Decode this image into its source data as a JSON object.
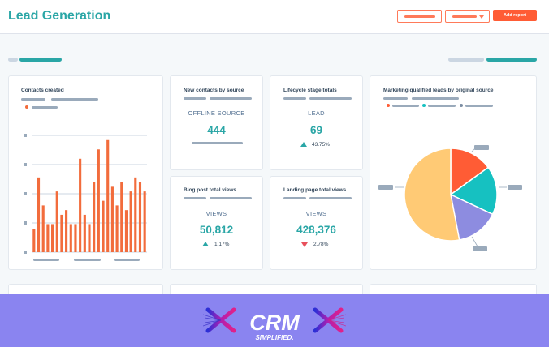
{
  "header": {
    "title": "Lead Generation",
    "add_report_label": "Add report"
  },
  "cards": {
    "contacts_created": {
      "title": "Contacts created"
    },
    "new_contacts_by_source": {
      "title": "New contacts by source",
      "label": "OFFLINE SOURCE",
      "value": "444"
    },
    "lifecycle_stage_totals": {
      "title": "Lifecycle stage totals",
      "label": "LEAD",
      "value": "69",
      "change": "43.75%",
      "direction": "up"
    },
    "blog_post_total_views": {
      "title": "Blog post total views",
      "label": "VIEWS",
      "value": "50,812",
      "change": "1.17%",
      "direction": "up"
    },
    "landing_page_total_views": {
      "title": "Landing page total views",
      "label": "VIEWS",
      "value": "428,376",
      "change": "2.78%",
      "direction": "down"
    },
    "mql_by_source": {
      "title": "Marketing qualified leads by original source"
    }
  },
  "footer": {
    "logo_text": "CRM",
    "logo_tagline": "SIMPLIFIED."
  },
  "colors": {
    "accent": "#2aa6a6",
    "orange": "#ff5c35",
    "bar": "#f26c3c",
    "footer": "#8a84f0"
  },
  "chart_data": [
    {
      "type": "bar",
      "title": "Contacts created",
      "values": [
        5,
        16,
        10,
        6,
        6,
        13,
        8,
        9,
        6,
        6,
        20,
        8,
        6,
        15,
        22,
        11,
        24,
        14,
        10,
        15,
        9,
        13,
        16,
        15,
        13
      ]
    },
    {
      "type": "pie",
      "title": "Marketing qualified leads by original source",
      "values": [
        53,
        15,
        17,
        15
      ],
      "colors": [
        "#ffca75",
        "#ff5c35",
        "#16c1c1",
        "#8d8ce0"
      ]
    }
  ]
}
